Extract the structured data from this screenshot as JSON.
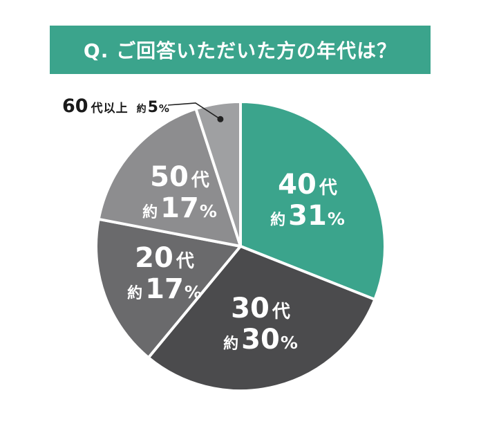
{
  "banner": {
    "title": "Q. ご回答いただいた方の年代は？",
    "background_color": "#3BA48C",
    "text_color": "#FFFFFF"
  },
  "chart_data": {
    "type": "pie",
    "title": "Q. ご回答いただいた方の年代は？",
    "unit": "%",
    "start_angle_deg": 0,
    "direction": "clockwise",
    "legend": "none",
    "categories": [
      "40代",
      "30代",
      "20代",
      "50代",
      "60代以上"
    ],
    "values": [
      31,
      30,
      17,
      17,
      5
    ],
    "slice_border_color": "#FFFFFF",
    "label_color_inside": "#FFFFFF",
    "label_color_outside": "#1A1A1A",
    "slices": [
      {
        "label": "40代",
        "value_label": "約31%",
        "percent": 31,
        "color": "#3BA48C",
        "label_placement": "inside"
      },
      {
        "label": "30代",
        "value_label": "約30%",
        "percent": 30,
        "color": "#4B4B4D",
        "label_placement": "inside"
      },
      {
        "label": "20代",
        "value_label": "約17%",
        "percent": 17,
        "color": "#6A6A6C",
        "label_placement": "inside"
      },
      {
        "label": "50代",
        "value_label": "約17%",
        "percent": 17,
        "color": "#8D8D8F",
        "label_placement": "inside"
      },
      {
        "label": "60代以上",
        "value_label": "約5%",
        "percent": 5,
        "color": "#9FA0A2",
        "label_placement": "outside-callout"
      }
    ],
    "callout": {
      "line_color": "#222222",
      "dot_color": "#222222"
    }
  }
}
